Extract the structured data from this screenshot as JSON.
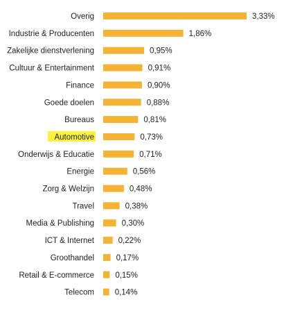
{
  "chart_data": {
    "type": "bar",
    "orientation": "horizontal",
    "categories": [
      "Overig",
      "Industrie & Producenten",
      "Zakelijke dienstverlening",
      "Cultuur & Entertainment",
      "Finance",
      "Goede doelen",
      "Bureaus",
      "Automotive",
      "Onderwijs & Educatie",
      "Energie",
      "Zorg & Welzijn",
      "Travel",
      "Media & Publishing",
      "ICT & Internet",
      "Groothandel",
      "Retail & E-commerce",
      "Telecom"
    ],
    "values": [
      3.33,
      1.86,
      0.95,
      0.91,
      0.9,
      0.88,
      0.81,
      0.73,
      0.71,
      0.56,
      0.48,
      0.38,
      0.3,
      0.22,
      0.17,
      0.15,
      0.14
    ],
    "value_labels": [
      "3,33%",
      "1,86%",
      "0,95%",
      "0,91%",
      "0,90%",
      "0,88%",
      "0,81%",
      "0,73%",
      "0,71%",
      "0,56%",
      "0,48%",
      "0,38%",
      "0,30%",
      "0,22%",
      "0,17%",
      "0,15%",
      "0,14%"
    ],
    "highlighted_category": "Automotive",
    "xlim": [
      0,
      3.33
    ],
    "grid": false,
    "legend": "none",
    "colors": {
      "bar": "#f5b335",
      "highlight": "#fcf33a"
    }
  }
}
